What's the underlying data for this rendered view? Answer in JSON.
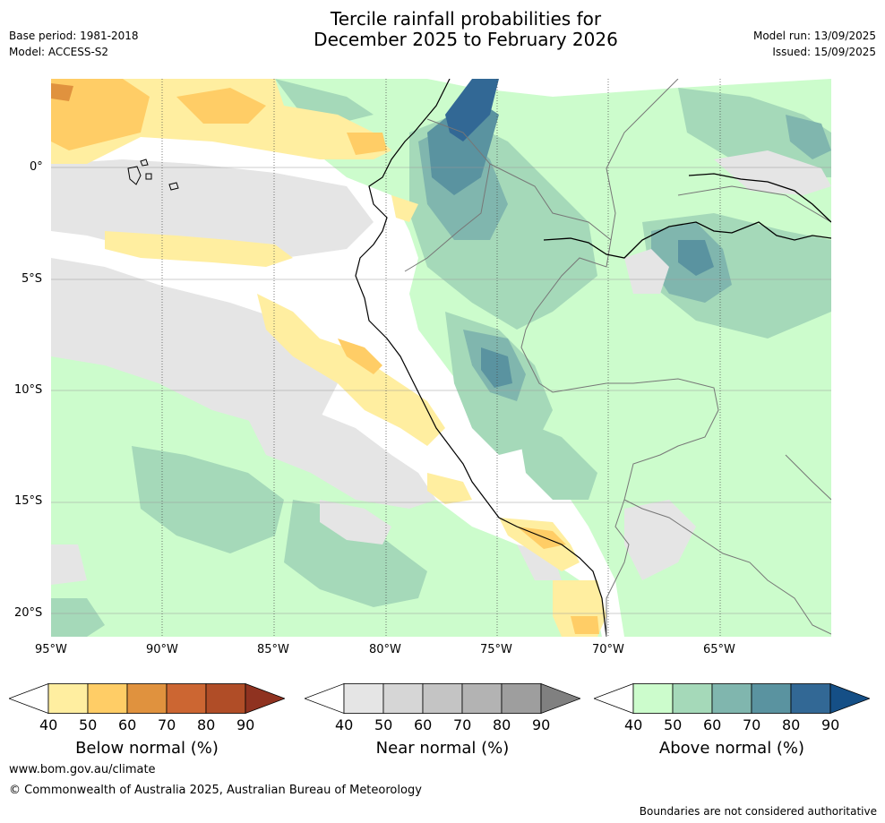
{
  "header": {
    "title_line1": "Tercile rainfall probabilities for",
    "title_line2": "December 2025 to February 2026",
    "base_period": "Base period: 1981-2018",
    "model": "Model: ACCESS-S2",
    "model_run": "Model run: 13/09/2025",
    "issued": "Issued: 15/09/2025"
  },
  "axes": {
    "lat_labels": [
      "0°",
      "5°S",
      "10°S",
      "15°S",
      "20°S"
    ],
    "lon_labels": [
      "95°W",
      "90°W",
      "85°W",
      "80°W",
      "75°W",
      "70°W",
      "65°W"
    ]
  },
  "colorbars": [
    {
      "label": "Below normal (%)",
      "ticks": [
        "40",
        "50",
        "60",
        "70",
        "80",
        "90"
      ],
      "colors": [
        "#ffeea0",
        "#ffcd66",
        "#e0923e",
        "#cc6632",
        "#b04d27",
        "#8f3220"
      ]
    },
    {
      "label": "Near normal (%)",
      "ticks": [
        "40",
        "50",
        "60",
        "70",
        "80",
        "90"
      ],
      "colors": [
        "#e5e5e5",
        "#d6d6d6",
        "#c4c4c4",
        "#b3b3b3",
        "#9e9e9e",
        "#808080"
      ]
    },
    {
      "label": "Above normal (%)",
      "ticks": [
        "40",
        "50",
        "60",
        "70",
        "80",
        "90"
      ],
      "colors": [
        "#ccfccc",
        "#a5d9b9",
        "#80b6ae",
        "#5a93a0",
        "#326895",
        "#154f86"
      ]
    }
  ],
  "footer": {
    "website": "www.bom.gov.au/climate",
    "copyright": "© Commonwealth of Australia 2025, Australian Bureau of Meteorology",
    "disclaimer": "Boundaries are not considered authoritative"
  }
}
